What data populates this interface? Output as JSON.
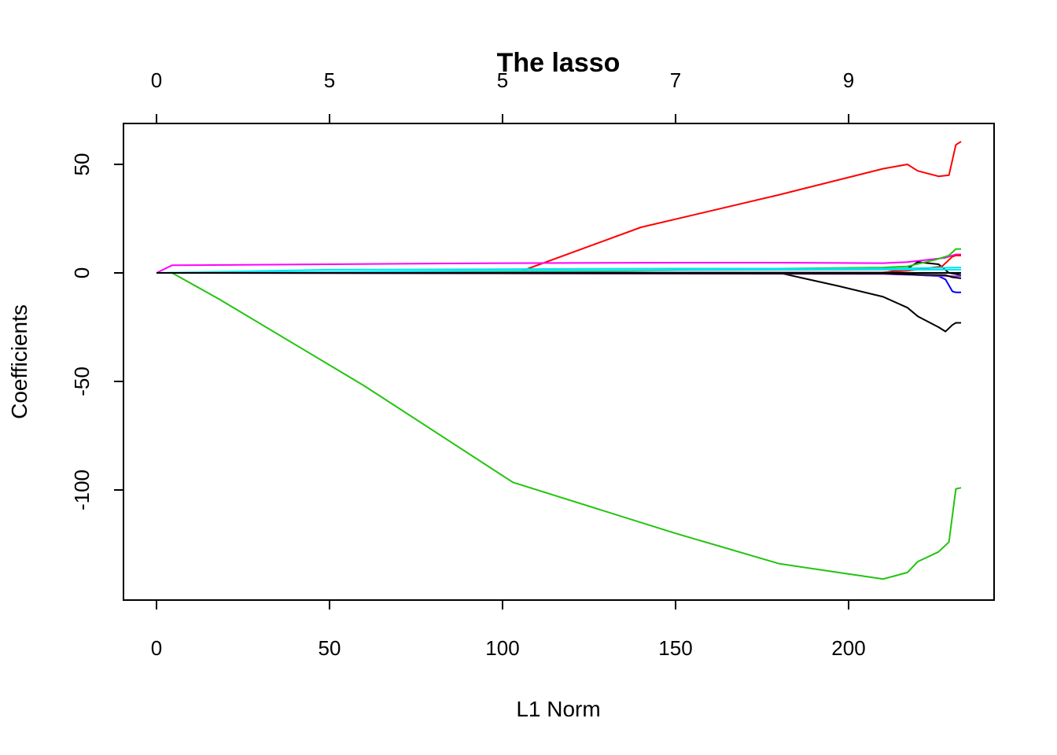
{
  "chart_data": {
    "type": "line",
    "title": "The lasso",
    "xlabel": "L1 Norm",
    "ylabel": "Coefficients",
    "xlim": [
      0,
      232
    ],
    "ylim": [
      -149,
      68
    ],
    "x_ticks": [
      0,
      50,
      100,
      150,
      200
    ],
    "y_ticks": [
      50,
      0,
      -50,
      -100
    ],
    "top_axis": {
      "ticks_at": [
        0,
        50,
        100,
        150,
        200
      ],
      "labels": [
        "0",
        "5",
        "5",
        "7",
        "9"
      ]
    },
    "grid": false,
    "legend": "none",
    "series": [
      {
        "color": "#ff0000",
        "x": [
          0,
          104,
          140,
          180,
          210,
          217,
          220,
          226,
          229,
          231,
          232.5
        ],
        "y": [
          0,
          0,
          21,
          36,
          48,
          50,
          47,
          44.5,
          45,
          59,
          60.5
        ]
      },
      {
        "color": "#22c40e",
        "x": [
          0,
          4.5,
          18,
          60,
          103,
          150,
          180,
          197,
          210,
          217,
          220,
          226,
          229,
          231,
          232.5
        ],
        "y": [
          0,
          0,
          -12,
          -52,
          -96.5,
          -120,
          -134,
          -138,
          -141,
          -138,
          -133,
          -128.5,
          -124,
          -99.5,
          -99
        ]
      },
      {
        "color": "#ff00ff",
        "x": [
          0,
          4.5,
          50,
          100,
          150,
          180,
          210,
          217,
          228,
          231,
          232.5
        ],
        "y": [
          0,
          3.5,
          4,
          4.5,
          4.7,
          4.7,
          4.5,
          5,
          7,
          8.5,
          8.5
        ]
      },
      {
        "color": "#000000",
        "x": [
          0,
          180,
          197,
          210,
          217,
          220,
          226,
          228,
          230,
          231,
          232.5
        ],
        "y": [
          0,
          0,
          -6,
          -11,
          -16,
          -20,
          -25,
          -27,
          -24,
          -23,
          -23
        ]
      },
      {
        "color": "#000000",
        "x": [
          0,
          210,
          217,
          220,
          226,
          229,
          231,
          232.5
        ],
        "y": [
          0,
          0,
          2,
          5,
          4,
          0,
          -0.5,
          -1
        ]
      },
      {
        "color": "#0000ff",
        "x": [
          0,
          210,
          220,
          226,
          228,
          230,
          231,
          232.5
        ],
        "y": [
          0,
          0,
          -1,
          -1.5,
          -3,
          -8.5,
          -9,
          -9
        ]
      },
      {
        "color": "#22c40e",
        "x": [
          0,
          120,
          180,
          210,
          217,
          225,
          229,
          231,
          232.5
        ],
        "y": [
          0,
          0.5,
          2,
          2.5,
          3,
          6,
          8,
          11,
          11
        ]
      },
      {
        "color": "#ff0000",
        "x": [
          0,
          210,
          217,
          227,
          230,
          231,
          232.5
        ],
        "y": [
          0,
          0.2,
          1,
          3,
          7.5,
          8,
          8
        ]
      },
      {
        "color": "#00e5ee",
        "x": [
          0,
          50,
          150,
          210,
          232.5
        ],
        "y": [
          0,
          1.5,
          2,
          2,
          2.5
        ]
      },
      {
        "color": "#00e5ee",
        "x": [
          0,
          100,
          210,
          232.5
        ],
        "y": [
          0,
          1,
          1.5,
          1.5
        ]
      },
      {
        "color": "#9b30ff",
        "x": [
          0,
          210,
          220,
          228,
          232.5
        ],
        "y": [
          0,
          -0.5,
          -1,
          -1.5,
          -1.5
        ]
      },
      {
        "color": "#000000",
        "x": [
          0,
          210,
          220,
          228,
          230,
          232.5
        ],
        "y": [
          0,
          -0.3,
          -0.8,
          -1,
          -2,
          -2.5
        ]
      },
      {
        "color": "#000000",
        "x": [
          0,
          232.5
        ],
        "y": [
          0,
          0
        ]
      }
    ]
  }
}
